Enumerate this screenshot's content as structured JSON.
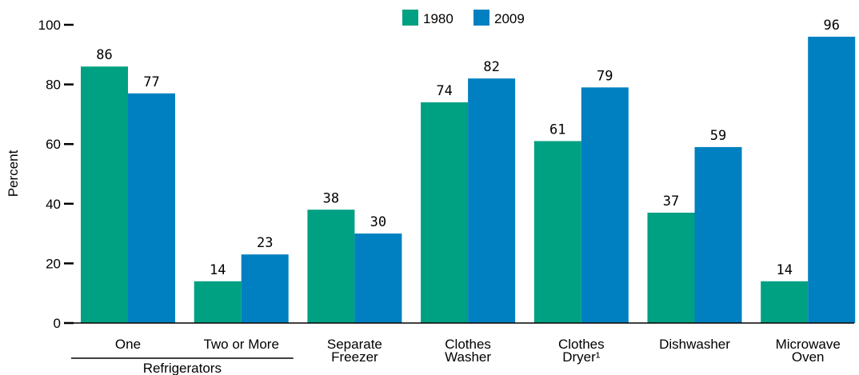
{
  "chart_data": {
    "type": "bar",
    "categories": [
      [
        "One"
      ],
      [
        "Two or More"
      ],
      [
        "Separate",
        "Freezer"
      ],
      [
        "Clothes",
        "Washer"
      ],
      [
        "Clothes",
        "Dryer¹"
      ],
      [
        "Dishwasher"
      ],
      [
        "Microwave",
        "Oven"
      ]
    ],
    "group_label": {
      "text": "Refrigerators",
      "categories": [
        "One",
        "Two or More"
      ]
    },
    "series": [
      {
        "name": "1980",
        "color": "#00a082",
        "values": [
          86,
          14,
          38,
          74,
          61,
          37,
          14
        ]
      },
      {
        "name": "2009",
        "color": "#0080c0",
        "values": [
          77,
          23,
          30,
          82,
          79,
          59,
          96
        ]
      }
    ],
    "ylabel": "Percent",
    "ylim": [
      0,
      100
    ],
    "yticks": [
      0,
      20,
      40,
      60,
      80,
      100
    ],
    "grid": false,
    "legend_position": "top-center",
    "value_labels": true
  }
}
